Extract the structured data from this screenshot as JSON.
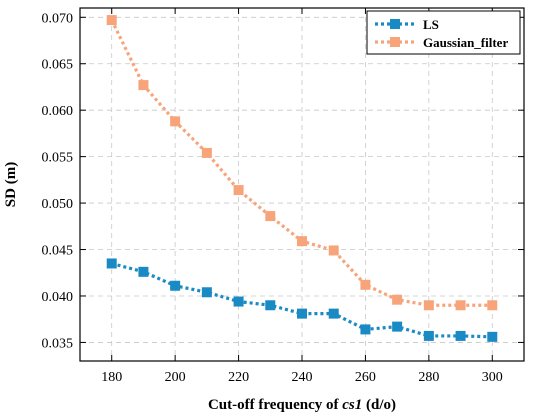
{
  "chart_data": {
    "type": "line",
    "title": "",
    "xlabel_prefix": "Cut-off frequency of ",
    "xlabel_italic": "cs1",
    "xlabel_suffix": " (d/o)",
    "ylabel": "SD (m)",
    "x": [
      180,
      190,
      200,
      210,
      220,
      230,
      240,
      250,
      260,
      270,
      280,
      290,
      300
    ],
    "xlim": [
      170,
      310
    ],
    "ylim": [
      0.033,
      0.071
    ],
    "xticks": [
      180,
      200,
      220,
      240,
      260,
      280,
      300
    ],
    "yticks": [
      0.035,
      0.04,
      0.045,
      0.05,
      0.055,
      0.06,
      0.065,
      0.07
    ],
    "ytick_labels": [
      "0.035",
      "0.040",
      "0.045",
      "0.050",
      "0.055",
      "0.060",
      "0.065",
      "0.070"
    ],
    "grid": true,
    "legend_position": "top-right",
    "series": [
      {
        "name": "LS",
        "color": "#1a8ac4",
        "marker": "square",
        "line_style": "dotted",
        "values": [
          0.0435,
          0.0426,
          0.0411,
          0.0404,
          0.0394,
          0.039,
          0.0381,
          0.0381,
          0.0364,
          0.0367,
          0.0357,
          0.0357,
          0.0356
        ]
      },
      {
        "name": "Gaussian_filter",
        "color": "#f7a47a",
        "marker": "square",
        "line_style": "dotted",
        "values": [
          0.0697,
          0.0627,
          0.0588,
          0.0554,
          0.0514,
          0.0486,
          0.0459,
          0.0449,
          0.0412,
          0.0396,
          0.039,
          0.039,
          0.039
        ]
      }
    ]
  }
}
